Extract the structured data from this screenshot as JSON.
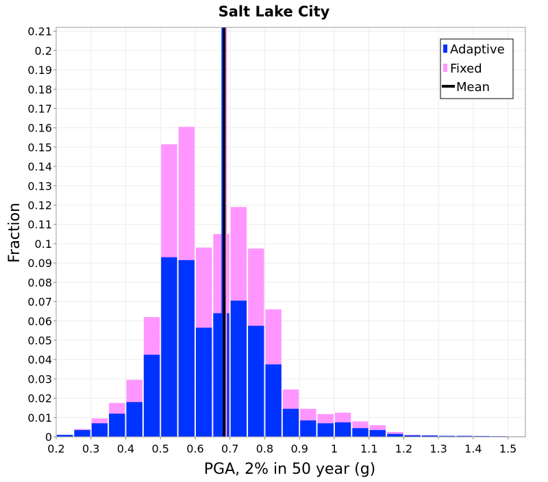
{
  "chart_data": {
    "type": "bar",
    "title": "Salt Lake City",
    "xlabel": "PGA, 2% in 50 year (g)",
    "ylabel": "Fraction",
    "xlim": [
      0.2,
      1.55
    ],
    "ylim": [
      0,
      0.212
    ],
    "bin_width": 0.05,
    "x_ticks": [
      "0.2",
      "0.3",
      "0.4",
      "0.5",
      "0.6",
      "0.7",
      "0.8",
      "0.9",
      "1",
      "1.1",
      "1.2",
      "1.3",
      "1.4",
      "1.5"
    ],
    "y_ticks": [
      "0",
      "0.01",
      "0.02",
      "0.03",
      "0.04",
      "0.05",
      "0.06",
      "0.07",
      "0.08",
      "0.09",
      "0.1",
      "0.11",
      "0.12",
      "0.13",
      "0.14",
      "0.15",
      "0.16",
      "0.17",
      "0.18",
      "0.19",
      "0.2",
      "0.21"
    ],
    "bin_starts": [
      0.2,
      0.25,
      0.3,
      0.35,
      0.4,
      0.45,
      0.5,
      0.55,
      0.6,
      0.65,
      0.7,
      0.75,
      0.8,
      0.85,
      0.9,
      0.95,
      1.0,
      1.05,
      1.1,
      1.15,
      1.2,
      1.25,
      1.3,
      1.35,
      1.4,
      1.45,
      1.5
    ],
    "series": [
      {
        "name": "Fixed",
        "color": "#ff96ff",
        "values": [
          0.001,
          0.004,
          0.0095,
          0.0175,
          0.0295,
          0.062,
          0.1515,
          0.1605,
          0.098,
          0.105,
          0.119,
          0.0975,
          0.066,
          0.0245,
          0.0145,
          0.0118,
          0.0125,
          0.008,
          0.006,
          0.0025,
          0.001,
          0.0008,
          0.0005,
          0.0005,
          0.0003,
          0.0003,
          0.0002
        ]
      },
      {
        "name": "Adaptive",
        "color": "#0033ff",
        "values": [
          0.001,
          0.0035,
          0.007,
          0.012,
          0.018,
          0.0425,
          0.093,
          0.0915,
          0.0565,
          0.064,
          0.0705,
          0.0575,
          0.0375,
          0.0145,
          0.0085,
          0.007,
          0.0075,
          0.0045,
          0.0035,
          0.0015,
          0.0008,
          0.0007,
          0.0005,
          0.0005,
          0.0004,
          0.0003,
          0.0002
        ]
      }
    ],
    "mean_lines": [
      {
        "name": "Adaptive mean",
        "x": 0.6805,
        "color": "#0033ff"
      },
      {
        "name": "Fixed mean",
        "x": 0.6865,
        "color": "#ff96ff"
      },
      {
        "name": "Mean",
        "x": 0.6835,
        "color": "#000000"
      }
    ],
    "legend": {
      "position": "top-right",
      "entries": [
        {
          "label": "Adaptive",
          "color": "#0033ff",
          "kind": "bar"
        },
        {
          "label": "Fixed",
          "color": "#ff96ff",
          "kind": "bar"
        },
        {
          "label": "Mean",
          "color": "#000000",
          "kind": "line"
        }
      ]
    },
    "grid": true
  }
}
